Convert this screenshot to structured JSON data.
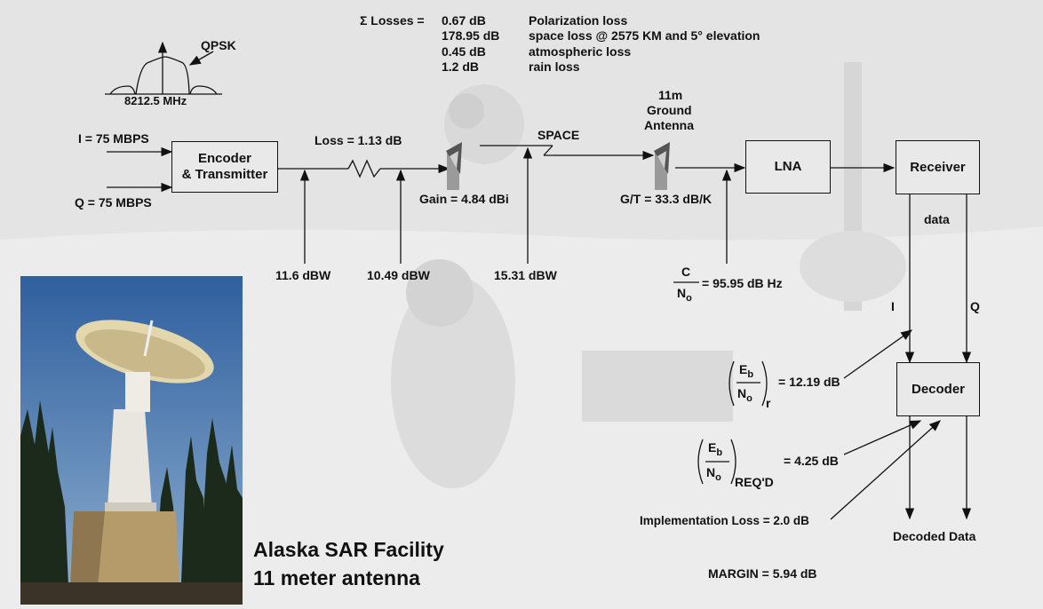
{
  "losses": {
    "sum_label": "Σ Losses =",
    "values": [
      "0.67 dB",
      "178.95 dB",
      "0.45 dB",
      "1.2 dB"
    ],
    "names": [
      "Polarization loss",
      "space loss @ 2575 KM and 5° elevation",
      "atmospheric loss",
      "rain loss"
    ]
  },
  "spectrum": {
    "label": "QPSK",
    "freq": "8212.5 MHz"
  },
  "inputs": {
    "i": "I = 75 MBPS",
    "q": "Q = 75 MBPS"
  },
  "blocks": {
    "encoder_line1": "Encoder",
    "encoder_line2": "& Transmitter",
    "lna": "LNA",
    "receiver": "Receiver",
    "decoder": "Decoder"
  },
  "link": {
    "loss": "Loss = 1.13 dB",
    "space": "SPACE",
    "gain": "Gain = 4.84 dBi",
    "gt": "G/T = 33.3 dB/K",
    "ground_line1": "11m",
    "ground_line2": "Ground",
    "ground_line3": "Antenna"
  },
  "power_levels": [
    "11.6 dBW",
    "10.49 dBW",
    "15.31 dBW"
  ],
  "cno": {
    "num": "C",
    "den": "N",
    "den_sub": "o",
    "value": "= 95.95 dB Hz"
  },
  "receiver_out": {
    "data": "data",
    "i": "I",
    "q": "Q"
  },
  "ebno_r": {
    "num": "E",
    "num_sub": "b",
    "den": "N",
    "den_sub": "o",
    "sub": "r",
    "value": "= 12.19 dB"
  },
  "ebno_req": {
    "num": "E",
    "num_sub": "b",
    "den": "N",
    "den_sub": "o",
    "sub": "REQ'D",
    "value": "= 4.25 dB"
  },
  "impl_loss": "Implementation Loss = 2.0 dB",
  "decoded": "Decoded Data",
  "margin": "MARGIN = 5.94 dB",
  "caption": {
    "line1": "Alaska SAR Facility",
    "line2": "11 meter antenna"
  },
  "colors": {
    "line": "#111111",
    "background": "#e6e6e6",
    "sky": "#3b6fb0"
  }
}
